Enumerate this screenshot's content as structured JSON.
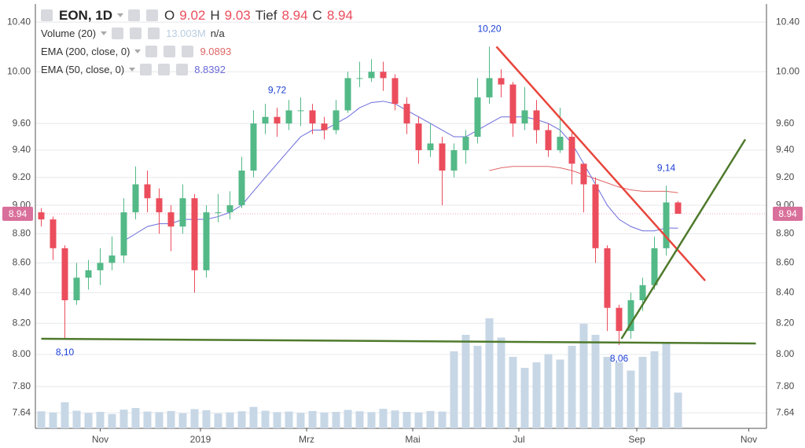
{
  "chart_data": {
    "type": "candlestick",
    "title": "EON, 1D",
    "log_y": true,
    "grid": true,
    "ylim": [
      7.547,
      10.55
    ],
    "yticks": [
      7.64,
      {
        "value": 7.8,
        "label": "7.80"
      },
      {
        "value": 8,
        "label": "8.00"
      },
      {
        "value": 8.2,
        "label": "8.20"
      },
      {
        "value": 8.4,
        "label": "8.40"
      },
      {
        "value": 8.6,
        "label": "8.60"
      },
      {
        "value": 8.8,
        "label": "8.80"
      },
      {
        "value": 9,
        "label": "9.00"
      },
      {
        "value": 9.2,
        "label": "9.20"
      },
      {
        "value": 9.4,
        "label": "9.40"
      },
      {
        "value": 9.6,
        "label": "9.60"
      },
      {
        "value": 10,
        "label": "10.00"
      },
      {
        "value": 10.4,
        "label": "10.40"
      }
    ],
    "xlim": [
      0,
      62
    ],
    "xticks": [
      {
        "value": 5.5,
        "label": "Nov"
      },
      {
        "value": 14,
        "label": "2019"
      },
      {
        "value": 23,
        "label": "Mrz"
      },
      {
        "value": 32,
        "label": "Mai"
      },
      {
        "value": 41,
        "label": "Jul"
      },
      {
        "value": 51,
        "label": "Sep"
      },
      {
        "value": 60.5,
        "label": "Nov"
      }
    ],
    "ohlc_labels": {
      "open": "O",
      "high": "H",
      "low": "Tief",
      "close": "C"
    },
    "candles": {
      "up_color": "#53b987",
      "down_color": "#eb4d5c",
      "open": [
        8.95,
        8.9,
        8.7,
        8.35,
        8.5,
        8.55,
        8.6,
        8.65,
        8.95,
        9.15,
        9.05,
        8.95,
        8.85,
        9.05,
        8.55,
        8.95,
        8.95,
        9.0,
        9.25,
        9.6,
        9.65,
        9.6,
        9.7,
        9.7,
        9.6,
        9.55,
        9.7,
        9.95,
        9.95,
        10.0,
        9.95,
        9.75,
        9.6,
        9.4,
        9.45,
        9.25,
        9.4,
        9.5,
        9.8,
        9.95,
        9.9,
        9.6,
        9.7,
        9.55,
        9.4,
        9.5,
        9.3,
        9.15,
        8.7,
        8.3,
        8.15,
        8.35,
        8.45,
        8.7,
        9.02
      ],
      "high": [
        8.98,
        8.92,
        8.72,
        8.6,
        8.62,
        8.7,
        8.78,
        9.05,
        9.28,
        9.25,
        9.12,
        9.0,
        9.15,
        9.08,
        9.0,
        9.08,
        9.1,
        9.35,
        9.7,
        9.75,
        9.72,
        9.78,
        9.8,
        9.75,
        9.65,
        9.78,
        10.0,
        10.08,
        10.1,
        10.08,
        9.98,
        9.8,
        9.65,
        9.6,
        9.5,
        9.45,
        9.55,
        9.95,
        10.2,
        10.02,
        9.92,
        9.88,
        9.78,
        9.6,
        9.72,
        9.55,
        9.3,
        9.2,
        8.72,
        8.32,
        8.4,
        8.5,
        8.78,
        9.14,
        9.03
      ],
      "low": [
        8.85,
        8.62,
        8.1,
        8.32,
        8.42,
        8.45,
        8.55,
        8.6,
        8.9,
        8.95,
        8.8,
        8.68,
        8.8,
        8.4,
        8.5,
        8.88,
        8.9,
        8.98,
        9.2,
        9.52,
        9.5,
        9.55,
        9.58,
        9.52,
        9.48,
        9.52,
        9.68,
        9.88,
        9.92,
        9.85,
        9.7,
        9.52,
        9.3,
        9.35,
        9.0,
        9.2,
        9.3,
        9.45,
        9.75,
        9.8,
        9.5,
        9.55,
        9.45,
        9.35,
        9.38,
        9.15,
        8.95,
        8.6,
        8.15,
        8.06,
        8.1,
        8.28,
        8.42,
        8.65,
        8.94
      ],
      "close": [
        8.9,
        8.7,
        8.35,
        8.5,
        8.55,
        8.6,
        8.65,
        8.95,
        9.15,
        9.05,
        8.95,
        8.85,
        9.05,
        8.55,
        8.95,
        8.95,
        9.0,
        9.25,
        9.6,
        9.65,
        9.6,
        9.7,
        9.7,
        9.6,
        9.55,
        9.7,
        9.95,
        9.95,
        10.0,
        9.95,
        9.75,
        9.6,
        9.4,
        9.45,
        9.25,
        9.4,
        9.5,
        9.8,
        9.95,
        9.9,
        9.6,
        9.7,
        9.55,
        9.4,
        9.5,
        9.3,
        9.15,
        8.7,
        8.3,
        8.15,
        8.35,
        8.45,
        8.7,
        9.02,
        8.94
      ]
    },
    "volume": {
      "name": "Volume (20)",
      "color": "#c7d7e6",
      "status": "n/a",
      "values": [
        6200000,
        5800000,
        9500000,
        6400000,
        5600000,
        6000000,
        5200000,
        6800000,
        7400000,
        6100000,
        5900000,
        6300000,
        5500000,
        7000000,
        6600000,
        5400000,
        5800000,
        6200000,
        7800000,
        6400000,
        5900000,
        6100000,
        5600000,
        6300000,
        5800000,
        6000000,
        6700000,
        6200000,
        5900000,
        7100000,
        6500000,
        6000000,
        5800000,
        6300000,
        6100000,
        28000000,
        34000000,
        30000000,
        40000000,
        33000000,
        26000000,
        22000000,
        24000000,
        27000000,
        25000000,
        30000000,
        38000000,
        34000000,
        26000000,
        24000000,
        21000000,
        26000000,
        28000000,
        31000000,
        13003000
      ],
      "value_labels": [
        null,
        null,
        null,
        null,
        null,
        null,
        null,
        null,
        null,
        null,
        null,
        null,
        null,
        null,
        null,
        null,
        null,
        null,
        null,
        null,
        null,
        null,
        null,
        null,
        null,
        null,
        null,
        null,
        null,
        null,
        null,
        null,
        null,
        null,
        null,
        null,
        null,
        null,
        null,
        null,
        null,
        null,
        null,
        null,
        null,
        null,
        null,
        null,
        null,
        null,
        null,
        null,
        null,
        null,
        "13.003M"
      ]
    },
    "series": [
      {
        "name": "EMA (200, close, 0)",
        "color": "#e06666",
        "values": [
          null,
          null,
          null,
          null,
          null,
          null,
          null,
          null,
          null,
          null,
          null,
          null,
          null,
          null,
          null,
          null,
          null,
          null,
          null,
          null,
          null,
          null,
          null,
          null,
          null,
          null,
          null,
          null,
          null,
          null,
          null,
          null,
          null,
          null,
          null,
          null,
          null,
          null,
          9.25,
          9.27,
          9.28,
          9.28,
          9.28,
          9.28,
          9.27,
          9.25,
          9.22,
          9.19,
          9.16,
          9.13,
          9.11,
          9.1,
          9.1,
          9.1,
          9.0893
        ]
      },
      {
        "name": "EMA (50, close, 0)",
        "color": "#6b6bdb",
        "values": [
          null,
          null,
          null,
          null,
          null,
          null,
          null,
          8.75,
          8.8,
          8.85,
          8.87,
          8.87,
          8.9,
          8.9,
          8.9,
          8.92,
          8.95,
          9.0,
          9.1,
          9.2,
          9.3,
          9.4,
          9.5,
          9.55,
          9.55,
          9.6,
          9.65,
          9.72,
          9.76,
          9.77,
          9.75,
          9.7,
          9.65,
          9.6,
          9.55,
          9.5,
          9.5,
          9.55,
          9.6,
          9.65,
          9.65,
          9.65,
          9.63,
          9.6,
          9.55,
          9.45,
          9.3,
          9.15,
          9.0,
          8.9,
          8.85,
          8.82,
          8.82,
          8.84,
          8.8392
        ]
      }
    ],
    "annotations": [
      {
        "value": 10.2,
        "label": "10,20"
      },
      {
        "value": 9.72,
        "label": "9,72"
      },
      {
        "value": 9.14,
        "label": "9,14"
      },
      {
        "value": 8.1,
        "label": "8,10"
      },
      {
        "value": 8.06,
        "label": "8,06"
      }
    ],
    "annotation_color": "#1a3fd6",
    "trendlines": [
      {
        "color": "#e8463c",
        "x": [
          39.1,
          56.8
        ],
        "y": [
          10.2,
          8.48
        ]
      },
      {
        "color": "#4e7a2c",
        "x": [
          49.7,
          60.2
        ],
        "y": [
          8.1,
          9.48
        ]
      },
      {
        "color": "#4e7a2c",
        "x": [
          0.5,
          61.1
        ],
        "y": [
          8.1,
          8.07
        ]
      }
    ],
    "last_price_color": "#d9709b"
  }
}
